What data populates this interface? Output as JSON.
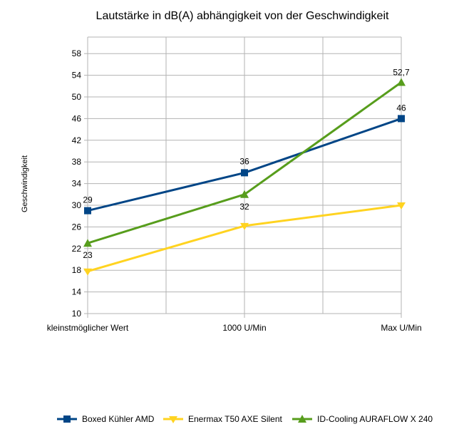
{
  "chart_data": {
    "type": "line",
    "title": "Lautstärke in dB(A) abhängigkeit von der Geschwindigkeit",
    "xlabel": "",
    "ylabel": "Geschwindigkeit",
    "categories": [
      "kleinstmöglicher Wert",
      "1000 U/Min",
      "Max U/Min"
    ],
    "ylim": [
      10,
      60
    ],
    "yticks": [
      10,
      14,
      18,
      22,
      26,
      30,
      34,
      38,
      42,
      46,
      50,
      54,
      58
    ],
    "grid": true,
    "legend_position": "bottom",
    "series": [
      {
        "name": "Boxed Kühler AMD",
        "color": "#004586",
        "marker": "square",
        "values": [
          29,
          36,
          46
        ],
        "labels": [
          "29",
          "36",
          "46"
        ]
      },
      {
        "name": "Enermax T50 AXE Silent",
        "color": "#ffd320",
        "marker": "triangle-down",
        "values": [
          17.8,
          26.2,
          30
        ],
        "labels": [
          null,
          null,
          null
        ]
      },
      {
        "name": "ID-Cooling AURAFLOW X 240",
        "color": "#579d1c",
        "marker": "triangle-up",
        "values": [
          23,
          32,
          52.7
        ],
        "labels": [
          "23",
          "32",
          "52,7"
        ]
      }
    ]
  }
}
